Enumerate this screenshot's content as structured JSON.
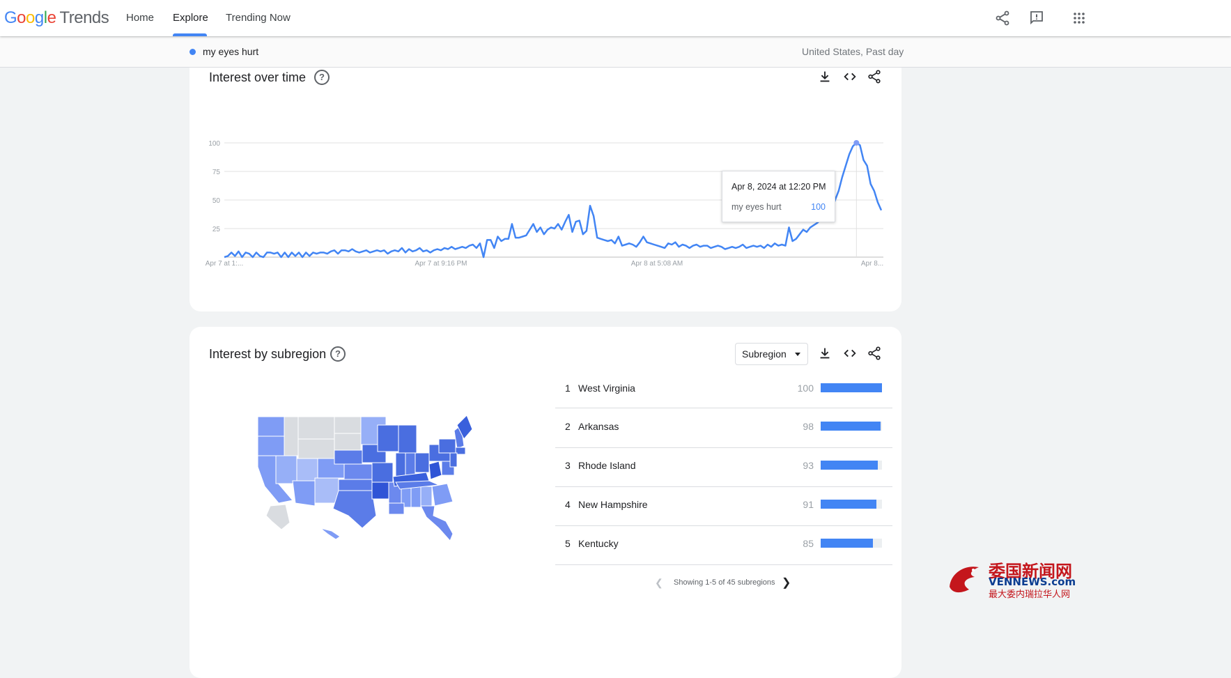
{
  "header": {
    "logo_google": "Google",
    "logo_trends": "Trends",
    "nav": [
      "Home",
      "Explore",
      "Trending Now"
    ],
    "active_nav": "Explore",
    "icons": [
      "share-icon",
      "feedback-icon",
      "apps-icon"
    ]
  },
  "search": {
    "term": "my eyes hurt",
    "term_color": "#4285f4",
    "scope": "United States, Past day"
  },
  "interest_over_time": {
    "title": "Interest over time",
    "tooltip": {
      "date": "Apr 8, 2024 at 12:20 PM",
      "term": "my eyes hurt",
      "value": "100"
    }
  },
  "chart_data": {
    "type": "line",
    "x_tick_labels": [
      "Apr 7 at 1:...",
      "Apr 7 at 9:16 PM",
      "Apr 8 at 5:08 AM",
      "Apr 8..."
    ],
    "y_ticks": [
      25,
      50,
      75,
      100
    ],
    "ylim": [
      0,
      100
    ],
    "grid": true,
    "series": [
      {
        "name": "my eyes hurt",
        "color": "#4285f4",
        "values": [
          0,
          1,
          4,
          1,
          5,
          0,
          4,
          3,
          0,
          4,
          1,
          0,
          4,
          4,
          3,
          4,
          0,
          4,
          0,
          4,
          1,
          4,
          0,
          4,
          1,
          4,
          3,
          4,
          4,
          3,
          5,
          6,
          3,
          6,
          6,
          5,
          7,
          5,
          4,
          5,
          6,
          4,
          5,
          6,
          5,
          6,
          3,
          5,
          6,
          5,
          8,
          4,
          7,
          5,
          6,
          8,
          5,
          6,
          4,
          6,
          7,
          6,
          8,
          7,
          9,
          7,
          8,
          9,
          8,
          10,
          11,
          8,
          12,
          0,
          15,
          15,
          8,
          18,
          14,
          16,
          16,
          29,
          17,
          17,
          18,
          19,
          24,
          29,
          22,
          26,
          20,
          24,
          26,
          25,
          29,
          24,
          31,
          37,
          22,
          31,
          32,
          20,
          23,
          45,
          36,
          17,
          16,
          15,
          14,
          15,
          12,
          18,
          10,
          11,
          12,
          11,
          9,
          13,
          18,
          13,
          12,
          11,
          10,
          9,
          8,
          12,
          11,
          13,
          9,
          11,
          10,
          8,
          10,
          11,
          9,
          10,
          10,
          8,
          9,
          10,
          9,
          7,
          8,
          9,
          8,
          9,
          11,
          8,
          9,
          10,
          9,
          10,
          8,
          11,
          9,
          12,
          10,
          11,
          10,
          26,
          14,
          16,
          20,
          24,
          22,
          26,
          28,
          30,
          33,
          36,
          38,
          40,
          50,
          58,
          70,
          80,
          90,
          97,
          100,
          98,
          85,
          80,
          64,
          58,
          48,
          41
        ]
      }
    ]
  },
  "interest_by_subregion": {
    "title": "Interest by subregion",
    "dropdown_label": "Subregion",
    "rows": [
      {
        "rank": "1",
        "name": "West Virginia",
        "value": 100
      },
      {
        "rank": "2",
        "name": "Arkansas",
        "value": 98
      },
      {
        "rank": "3",
        "name": "Rhode Island",
        "value": 93
      },
      {
        "rank": "4",
        "name": "New Hampshire",
        "value": 91
      },
      {
        "rank": "5",
        "name": "Kentucky",
        "value": 85
      }
    ],
    "pager_text": "Showing 1-5 of 45 subregions"
  },
  "watermark": {
    "line1": "委国新闻网",
    "line2": "VENNEWS.com",
    "line3": "最大委内瑞拉华人网"
  }
}
